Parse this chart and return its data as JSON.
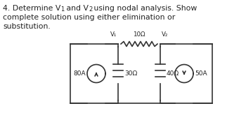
{
  "bg_color": "#ffffff",
  "circuit_color": "#333333",
  "text_color": "#222222",
  "label_80A": "80A",
  "label_50A": "50A",
  "label_10": "10Ω",
  "label_30": "30Ω",
  "label_40": "40Ω",
  "label_V1": "V₁",
  "label_V2": "V₂",
  "title_l1a": "4. Determine V",
  "title_l1b": "1",
  "title_l1c": " and V",
  "title_l1d": "2",
  "title_l1e": " using nodal analysis. Show",
  "title_l2": "complete solution using either elimination or",
  "title_l3": "substitution.",
  "fig_w": 3.5,
  "fig_h": 1.62,
  "dpi": 100
}
